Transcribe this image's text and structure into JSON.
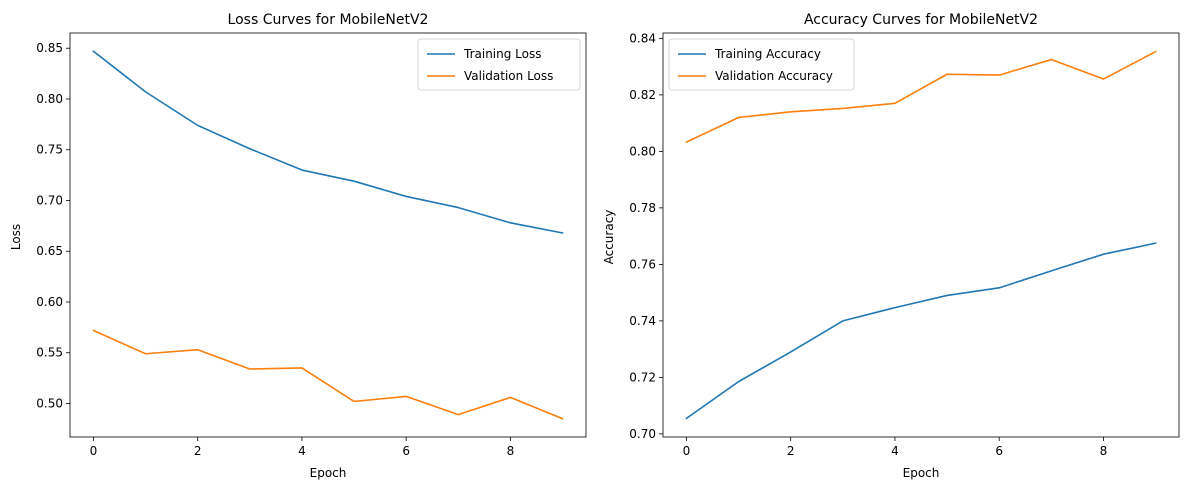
{
  "chart_data": [
    {
      "type": "line",
      "title": "Loss Curves for MobileNetV2",
      "xlabel": "Epoch",
      "ylabel": "Loss",
      "xlim": [
        -0.45,
        9.45
      ],
      "ylim": [
        0.467,
        0.865
      ],
      "xticks": [
        0,
        2,
        4,
        6,
        8
      ],
      "xtick_labels": [
        "0",
        "2",
        "4",
        "6",
        "8"
      ],
      "yticks": [
        0.5,
        0.55,
        0.6,
        0.65,
        0.7,
        0.75,
        0.8,
        0.85
      ],
      "ytick_labels": [
        "0.50",
        "0.55",
        "0.60",
        "0.65",
        "0.70",
        "0.75",
        "0.80",
        "0.85"
      ],
      "grid": false,
      "legend": "upper-right",
      "x": [
        0,
        1,
        2,
        3,
        4,
        5,
        6,
        7,
        8,
        9
      ],
      "series": [
        {
          "name": "Training Loss",
          "color": "#1f77b4",
          "values": [
            0.847,
            0.807,
            0.774,
            0.751,
            0.73,
            0.719,
            0.704,
            0.693,
            0.678,
            0.668
          ]
        },
        {
          "name": "Validation Loss",
          "color": "#ff7f0e",
          "values": [
            0.572,
            0.549,
            0.553,
            0.534,
            0.535,
            0.502,
            0.507,
            0.489,
            0.506,
            0.485
          ]
        }
      ]
    },
    {
      "type": "line",
      "title": "Accuracy Curves for MobileNetV2",
      "xlabel": "Epoch",
      "ylabel": "Accuracy",
      "xlim": [
        -0.45,
        9.45
      ],
      "ylim": [
        0.6989,
        0.8419
      ],
      "xticks": [
        0,
        2,
        4,
        6,
        8
      ],
      "xtick_labels": [
        "0",
        "2",
        "4",
        "6",
        "8"
      ],
      "yticks": [
        0.7,
        0.72,
        0.74,
        0.76,
        0.78,
        0.8,
        0.82,
        0.84
      ],
      "ytick_labels": [
        "0.70",
        "0.72",
        "0.74",
        "0.76",
        "0.78",
        "0.80",
        "0.82",
        "0.84"
      ],
      "grid": false,
      "legend": "upper-left",
      "x": [
        0,
        1,
        2,
        3,
        4,
        5,
        6,
        7,
        8,
        9
      ],
      "series": [
        {
          "name": "Training Accuracy",
          "color": "#1f77b4",
          "values": [
            0.7055,
            0.7185,
            0.729,
            0.74,
            0.7447,
            0.749,
            0.7517,
            0.7577,
            0.7636,
            0.7675
          ]
        },
        {
          "name": "Validation Accuracy",
          "color": "#ff7f0e",
          "values": [
            0.8033,
            0.812,
            0.814,
            0.8152,
            0.817,
            0.8273,
            0.827,
            0.8325,
            0.8256,
            0.8353
          ]
        }
      ]
    }
  ]
}
